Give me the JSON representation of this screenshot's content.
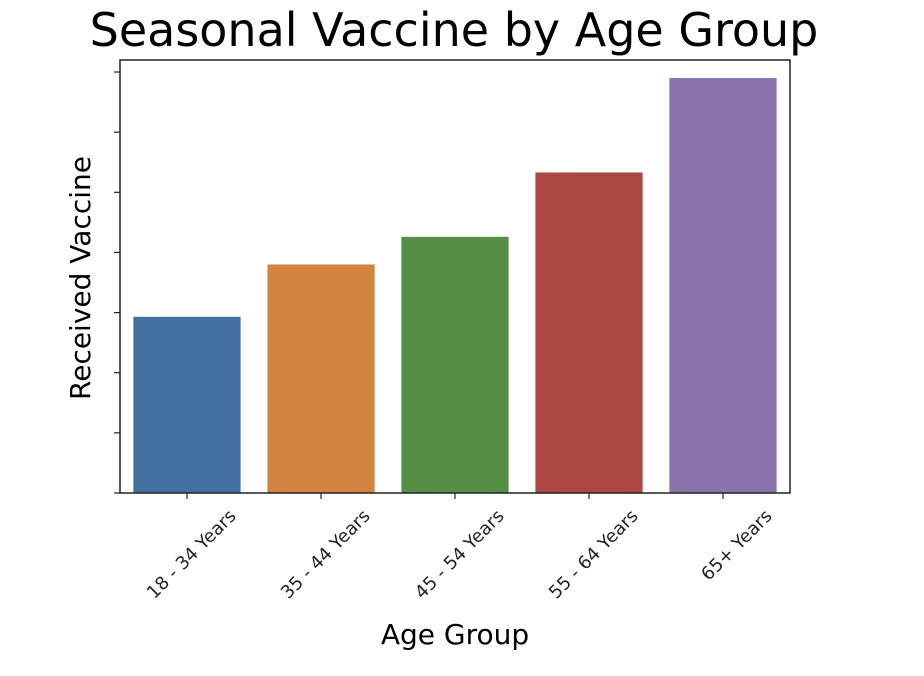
{
  "chart_data": {
    "type": "bar",
    "title": "Seasonal Vaccine by Age Group",
    "xlabel": "Age Group",
    "ylabel": "Received Vaccine",
    "categories": [
      "18 - 34 Years",
      "35 - 44 Years",
      "45 - 54 Years",
      "55 - 64 Years",
      "65+ Years"
    ],
    "values": [
      29.3,
      38.0,
      42.6,
      53.3,
      69.0
    ],
    "colors": [
      "#4270A0",
      "#D3843E",
      "#548F45",
      "#AB4641",
      "#8A72AC"
    ],
    "ylim": [
      0,
      72
    ],
    "y_tick_values": [
      0,
      10,
      20,
      30,
      40,
      50,
      60,
      70
    ],
    "y_tick_labels_shown": false,
    "grid": false,
    "legend": "none"
  }
}
